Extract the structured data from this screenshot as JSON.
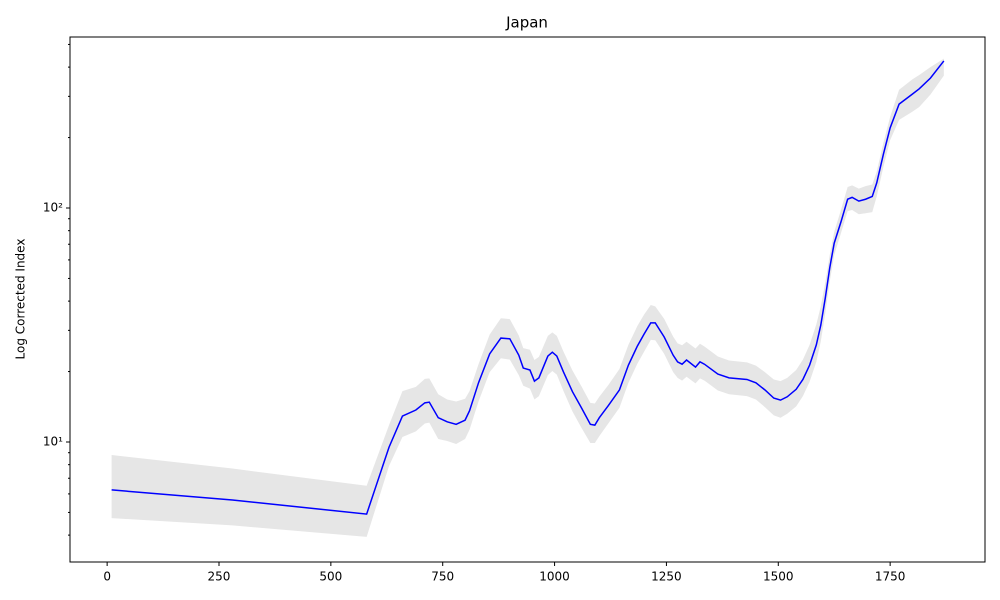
{
  "chart_data": {
    "type": "line",
    "title": "Japan",
    "ylabel": "Log Corrected Index",
    "log_y": true,
    "color": "#0000ff",
    "band_color": "#e6e6e6",
    "xlim": [
      -83,
      1962
    ],
    "ylim": [
      3.07,
      538
    ],
    "xticks": [
      0,
      250,
      500,
      750,
      1000,
      1250,
      1500,
      1750
    ],
    "yticks": [
      {
        "value": 10,
        "label": "10¹"
      },
      {
        "value": 100,
        "label": "10²"
      }
    ],
    "yminorticks": [
      4,
      5,
      6,
      7,
      8,
      9,
      20,
      30,
      40,
      50,
      60,
      70,
      80,
      90,
      200,
      300,
      400,
      500
    ],
    "x": [
      10,
      280,
      580,
      630,
      660,
      690,
      710,
      720,
      740,
      760,
      780,
      800,
      810,
      830,
      855,
      880,
      900,
      920,
      930,
      945,
      955,
      965,
      985,
      995,
      1005,
      1020,
      1040,
      1060,
      1080,
      1090,
      1100,
      1120,
      1145,
      1165,
      1185,
      1200,
      1215,
      1225,
      1245,
      1265,
      1275,
      1285,
      1295,
      1315,
      1325,
      1335,
      1365,
      1390,
      1430,
      1450,
      1470,
      1490,
      1505,
      1520,
      1540,
      1555,
      1570,
      1585,
      1595,
      1605,
      1615,
      1625,
      1640,
      1655,
      1665,
      1680,
      1695,
      1710,
      1720,
      1735,
      1750,
      1770,
      1800,
      1815,
      1840,
      1870
    ],
    "values": [
      6.24,
      5.65,
      4.92,
      9.5,
      12.9,
      13.7,
      14.7,
      14.8,
      12.7,
      12.2,
      11.9,
      12.4,
      13.6,
      17.9,
      23.8,
      27.8,
      27.6,
      23.5,
      20.7,
      20.3,
      18.2,
      18.8,
      23.3,
      24.2,
      23.3,
      19.9,
      16.4,
      14.0,
      11.9,
      11.8,
      12.7,
      14.3,
      16.7,
      21.3,
      25.7,
      28.9,
      32.3,
      32.3,
      28.1,
      23.5,
      22.0,
      21.5,
      22.4,
      20.9,
      22.0,
      21.5,
      19.5,
      18.8,
      18.5,
      17.9,
      16.7,
      15.4,
      15.1,
      15.6,
      16.8,
      18.5,
      21.3,
      26.0,
      31.6,
      41.2,
      55.5,
      70.8,
      87.1,
      109,
      111,
      107,
      109,
      112,
      128,
      170,
      220,
      278,
      307,
      323,
      359,
      425
    ],
    "upper": [
      8.8,
      7.7,
      6.5,
      11.8,
      16.5,
      17.2,
      18.6,
      18.7,
      16.0,
      15.2,
      14.9,
      15.3,
      16.5,
      21.5,
      28.8,
      33.8,
      33.5,
      28.5,
      25.2,
      24.8,
      22.4,
      23.1,
      28.4,
      29.4,
      28.4,
      24.3,
      20.2,
      17.3,
      14.7,
      14.6,
      15.6,
      17.5,
      20.5,
      26,
      31.3,
      35,
      38.5,
      38,
      33.6,
      28.2,
      26.4,
      25.9,
      26.8,
      25.1,
      26.3,
      25.6,
      23.2,
      22.3,
      21.9,
      21.2,
      19.9,
      18.5,
      18.2,
      18.8,
      20.3,
      22.5,
      26,
      31.8,
      38,
      48,
      63,
      79,
      98,
      123,
      125,
      121,
      124,
      126,
      143,
      190,
      245,
      320,
      355,
      370,
      400,
      435
    ],
    "lower": [
      4.73,
      4.4,
      3.93,
      7.9,
      10.5,
      11.1,
      12,
      12.1,
      10.3,
      10.1,
      9.8,
      10.3,
      11.3,
      14.9,
      19.9,
      22.8,
      22.5,
      19.3,
      17.4,
      16.9,
      15.2,
      15.7,
      19.3,
      20.1,
      19.4,
      16.5,
      13.5,
      11.5,
      9.9,
      9.9,
      10.6,
      12,
      14,
      17.9,
      21.6,
      24.3,
      27.3,
      27.2,
      23.8,
      19.9,
      18.8,
      18.3,
      19,
      17.8,
      18.7,
      18.3,
      16.6,
      16,
      15.7,
      15.2,
      14.1,
      13,
      12.7,
      13.2,
      14.2,
      15.7,
      18.1,
      22,
      26.9,
      35.5,
      48.5,
      63,
      78,
      97,
      98,
      94,
      95,
      96,
      112,
      150,
      195,
      238,
      258,
      270,
      305,
      368
    ]
  }
}
